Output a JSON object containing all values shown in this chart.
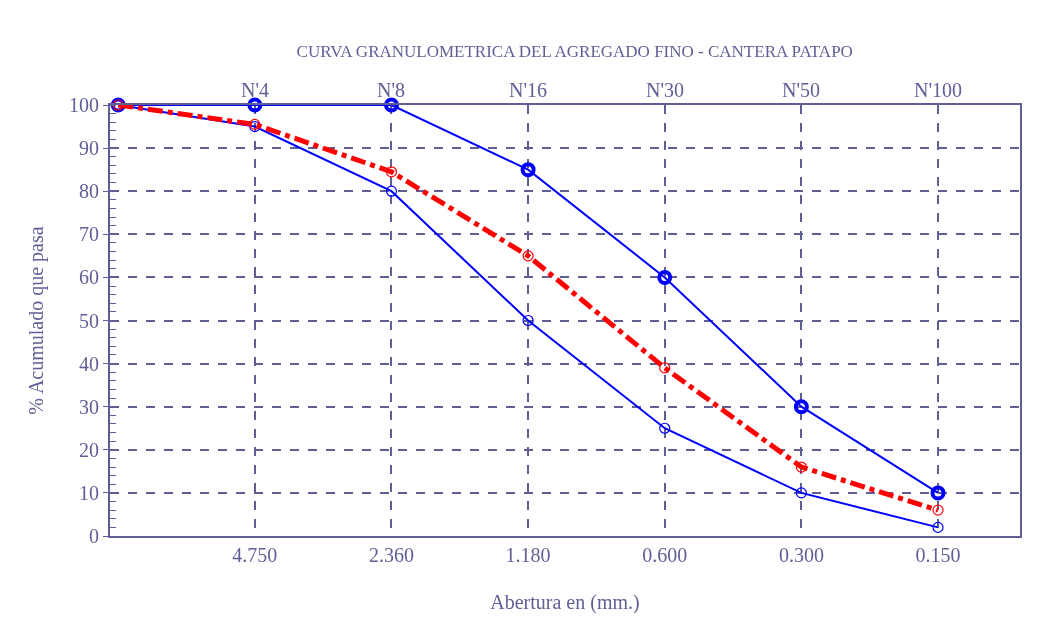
{
  "chart_data": {
    "type": "line",
    "title": "CURVA GRANULOMETRICA DEL AGREGADO FINO - CANTERA PATAPO",
    "xlabel": "Abertura en (mm.)",
    "ylabel": "% Acumulado que pasa",
    "categories": [
      null,
      "4.750",
      "2.360",
      "1.180",
      "0.600",
      "0.300",
      "0.150"
    ],
    "annotations": [
      "N'4",
      "N'8",
      "N'16",
      "N'30",
      "N'50",
      "N'100"
    ],
    "ylim": [
      0,
      100
    ],
    "yticks": [
      0,
      10,
      20,
      30,
      40,
      50,
      60,
      70,
      80,
      90,
      100
    ],
    "grid": true,
    "marker": "circle",
    "series": [
      {
        "color": "#0000ff",
        "line_style": "solid",
        "values": [
          100,
          100,
          100,
          85,
          60,
          30,
          10
        ]
      },
      {
        "color": "#0000ff",
        "line_style": "solid",
        "values": [
          100,
          95,
          80,
          50,
          25,
          10,
          2
        ]
      },
      {
        "color": "#ff0000",
        "line_style": "dashed",
        "values": [
          100,
          95.5,
          84.5,
          65,
          39,
          16,
          6
        ]
      }
    ]
  }
}
